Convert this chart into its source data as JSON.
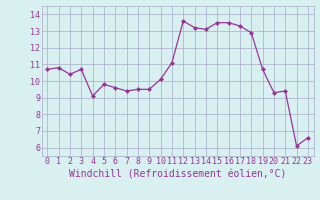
{
  "x": [
    0,
    1,
    2,
    3,
    4,
    5,
    6,
    7,
    8,
    9,
    10,
    11,
    12,
    13,
    14,
    15,
    16,
    17,
    18,
    19,
    20,
    21,
    22,
    23
  ],
  "y": [
    10.7,
    10.8,
    10.4,
    10.7,
    9.1,
    9.8,
    9.6,
    9.4,
    9.5,
    9.5,
    10.1,
    11.1,
    13.6,
    13.2,
    13.1,
    13.5,
    13.5,
    13.3,
    12.9,
    10.7,
    9.3,
    9.4,
    6.1,
    6.6
  ],
  "xlim": [
    -0.5,
    23.5
  ],
  "ylim": [
    5.5,
    14.5
  ],
  "yticks": [
    6,
    7,
    8,
    9,
    10,
    11,
    12,
    13,
    14
  ],
  "xticks": [
    0,
    1,
    2,
    3,
    4,
    5,
    6,
    7,
    8,
    9,
    10,
    11,
    12,
    13,
    14,
    15,
    16,
    17,
    18,
    19,
    20,
    21,
    22,
    23
  ],
  "xlabel": "Windchill (Refroidissement éolien,°C)",
  "line_color": "#993399",
  "marker_color": "#993399",
  "bg_color": "#d8f0f0",
  "grid_color": "#aaaacc",
  "tick_label_color": "#993399",
  "axis_label_color": "#993399",
  "tick_fontsize": 6.0,
  "label_fontsize": 7.0
}
